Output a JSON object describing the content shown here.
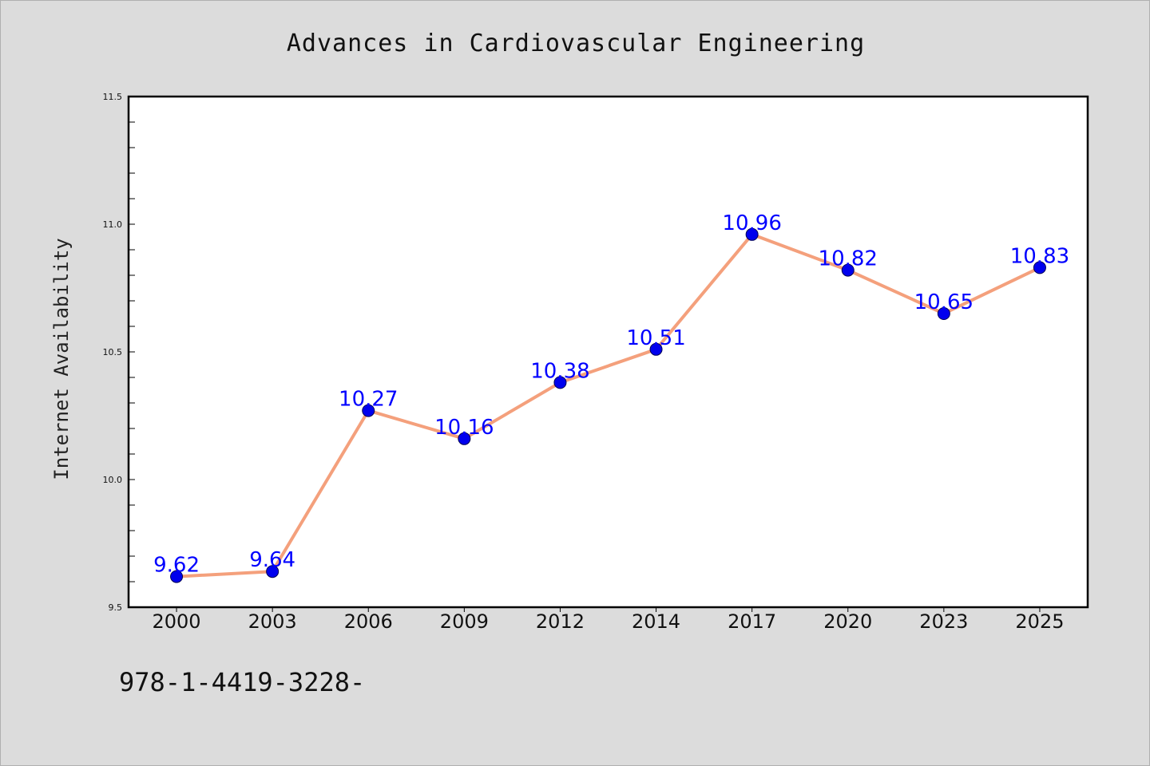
{
  "chart_data": {
    "type": "line",
    "title": "Advances in Cardiovascular Engineering",
    "xlabel": "",
    "ylabel": "Internet Availability",
    "categories": [
      "2000",
      "2003",
      "2006",
      "2009",
      "2012",
      "2014",
      "2017",
      "2020",
      "2023",
      "2025"
    ],
    "series": [
      {
        "values": [
          9.62,
          9.64,
          10.27,
          10.16,
          10.38,
          10.51,
          10.96,
          10.82,
          10.65,
          10.83
        ],
        "labels": [
          "9.62",
          "9.64",
          "10.27",
          "10.16",
          "10.38",
          "10.51",
          "10.96",
          "10.82",
          "10.65",
          "10.83"
        ]
      }
    ],
    "ylim": [
      9.5,
      11.5
    ],
    "yticks": [
      "9.5",
      "10.0",
      "10.5",
      "11.0",
      "11.5"
    ],
    "grid": false,
    "legend": "none",
    "colors": {
      "line": "#f4a07c",
      "marker": "#0000ee",
      "data_label": "#0000ff",
      "plot_background": "#ffffff",
      "figure_background": "#dcdcdc"
    }
  },
  "footnote": "978-1-4419-3228-"
}
